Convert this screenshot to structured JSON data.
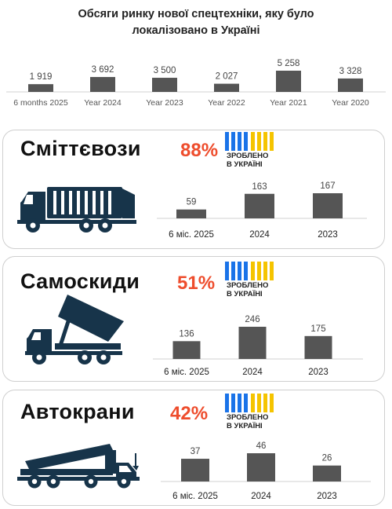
{
  "header": {
    "title_line1": "Обсяги ринку нової спецтехніки, яку було",
    "title_line2": "локалізовано в Україні"
  },
  "colors": {
    "bar": "#555555",
    "accent": "#ee4d2d",
    "flag_blue": "#1a73e8",
    "flag_yellow": "#f5c400"
  },
  "badge": {
    "line1": "ЗРОБЛЕНО",
    "line2": "В УКРАЇНІ"
  },
  "chart_data": [
    {
      "type": "bar",
      "title": "Обсяги ринку нової спецтехніки, яку було локалізовано в Україні",
      "categories": [
        "6 months 2025",
        "Year 2024",
        "Year 2023",
        "Year 2022",
        "Year 2021",
        "Year 2020"
      ],
      "values": [
        1919,
        3692,
        3500,
        2027,
        5258,
        3328
      ],
      "labels": [
        "1 919",
        "3 692",
        "3 500",
        "2 027",
        "5 258",
        "3 328"
      ]
    },
    {
      "type": "bar",
      "title": "Сміттєвози",
      "share": "88%",
      "categories": [
        "6 міс. 2025",
        "2024",
        "2023"
      ],
      "values": [
        59,
        163,
        167
      ],
      "labels": [
        "59",
        "163",
        "167"
      ]
    },
    {
      "type": "bar",
      "title": "Самоскиди",
      "share": "51%",
      "categories": [
        "6 міс. 2025",
        "2024",
        "2023"
      ],
      "values": [
        136,
        246,
        175
      ],
      "labels": [
        "136",
        "246",
        "175"
      ]
    },
    {
      "type": "bar",
      "title": "Автокрани",
      "share": "42%",
      "categories": [
        "6 міс. 2025",
        "2024",
        "2023"
      ],
      "values": [
        37,
        46,
        26
      ],
      "labels": [
        "37",
        "46",
        "26"
      ]
    }
  ]
}
